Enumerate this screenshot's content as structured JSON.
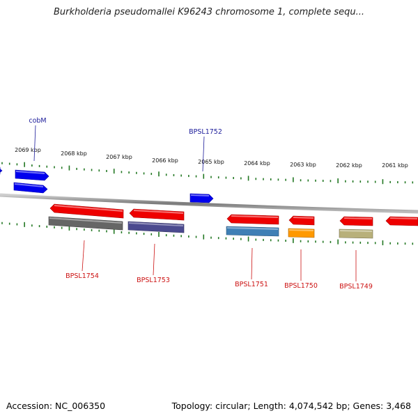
{
  "title": "Burkholderia pseudomallei K96243 chromosome 1, complete sequ...",
  "accession": "Accession: NC_006350",
  "summary": "Topology: circular; Length: 4,074,542 bp; Genes: 3,468",
  "colors": {
    "forward_gene": "#0000ee",
    "reverse_gene": "#ee0000",
    "tick": "#227722",
    "backbone": "#888888",
    "forward_label": "#1a1a99",
    "reverse_label": "#cc1111"
  },
  "scale_labels": [
    "2069 kbp",
    "2068 kbp",
    "2067 kbp",
    "2066 kbp",
    "2065 kbp",
    "2064 kbp",
    "2063 kbp",
    "2062 kbp",
    "2061 kbp"
  ],
  "forward_genes": [
    {
      "name": "cobM",
      "labeled": true
    },
    {
      "name": "",
      "labeled": false
    },
    {
      "name": "BPSL1752",
      "labeled": true
    },
    {
      "name": "",
      "labeled": false
    }
  ],
  "reverse_genes": [
    {
      "name": "BPSL1754",
      "labeled": true,
      "feature_color": "#666666"
    },
    {
      "name": "BPSL1753",
      "labeled": true,
      "feature_color": "#4b4a8f"
    },
    {
      "name": "BPSL1751",
      "labeled": true,
      "feature_color": "#3f7fb5"
    },
    {
      "name": "BPSL1750",
      "labeled": true,
      "feature_color": "#ff9900"
    },
    {
      "name": "BPSL1749",
      "labeled": true,
      "feature_color": "#b8b07a"
    },
    {
      "name": "",
      "labeled": false,
      "feature_color": ""
    }
  ]
}
